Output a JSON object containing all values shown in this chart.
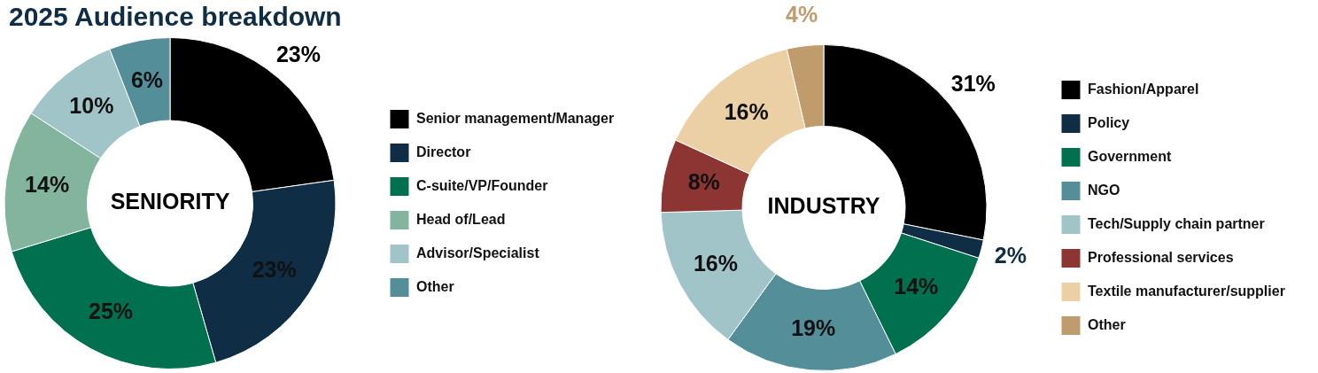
{
  "chart_data": [
    {
      "type": "other",
      "title": "2025 Audience breakdown"
    },
    {
      "type": "donut",
      "title": "SENIORITY",
      "categories": [
        "Senior management/Manager",
        "Director",
        "C-suite/VP/Founder",
        "Head of/Lead",
        "Advisor/Specialist",
        "Other"
      ],
      "values": [
        23,
        23,
        25,
        14,
        10,
        6
      ],
      "colors": [
        "#000000",
        "#0f2d45",
        "#00704f",
        "#83b59e",
        "#a0c4c7",
        "#538e99"
      ],
      "value_labels": [
        "23%",
        "23%",
        "25%",
        "14%",
        "10%",
        "6%"
      ],
      "legend": "right"
    },
    {
      "type": "donut",
      "title": "INDUSTRY",
      "categories": [
        "Fashion/Apparel",
        "Policy",
        "Government",
        "NGO",
        "Tech/Supply chain partner",
        "Professional services",
        "Textile manufacturer/supplier",
        "Other"
      ],
      "values": [
        31,
        2,
        14,
        19,
        16,
        8,
        16,
        4
      ],
      "colors": [
        "#000000",
        "#0f2d45",
        "#00704f",
        "#538e99",
        "#a0c4c7",
        "#8c3533",
        "#ecd0a5",
        "#c09b6b"
      ],
      "value_labels": [
        "31%",
        "2%",
        "14%",
        "19%",
        "16%",
        "8%",
        "16%",
        "4%"
      ],
      "legend": "right"
    }
  ]
}
